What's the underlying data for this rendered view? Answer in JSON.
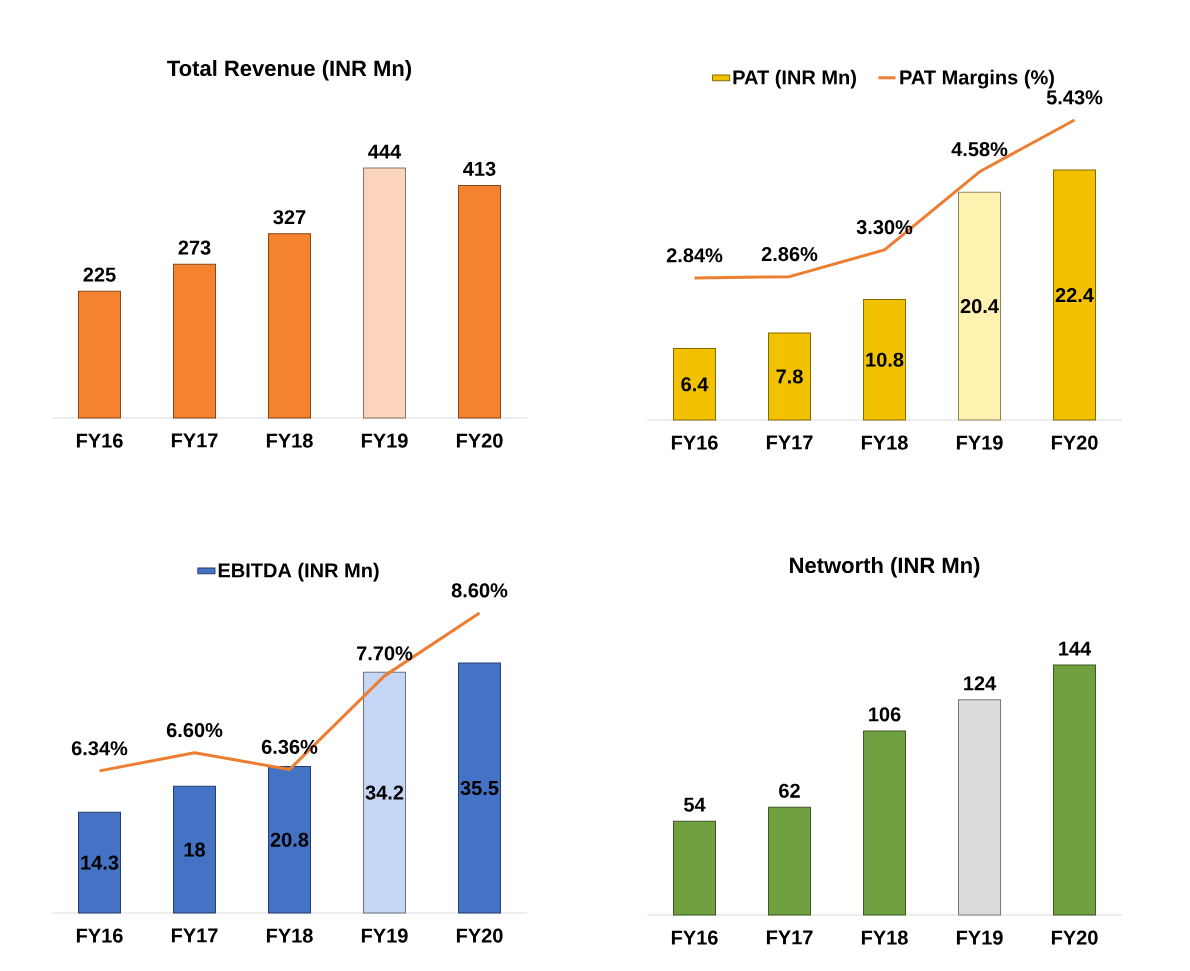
{
  "chart_data": [
    {
      "type": "bar",
      "title": "Total Revenue (INR Mn)",
      "categories": [
        "FY16",
        "FY17",
        "FY18",
        "FY19",
        "FY20"
      ],
      "values": [
        225,
        273,
        327,
        444,
        413
      ],
      "colors": [
        "#f5822f",
        "#f5822f",
        "#f5822f",
        "#fcd3bd",
        "#f5822f"
      ],
      "data_labels": true,
      "tick_labels": "x"
    },
    {
      "type": "bar",
      "categories": [
        "FY16",
        "FY17",
        "FY18",
        "FY19",
        "FY20"
      ],
      "legend": "top",
      "tick_labels": "x",
      "series": [
        {
          "name": "PAT (INR Mn)",
          "colors": [
            "#f2c200",
            "#f2c200",
            "#f2c200",
            "#fff1b0",
            "#f2c200"
          ],
          "values": [
            6.4,
            7.8,
            10.8,
            20.4,
            22.4
          ],
          "value_labels": [
            "6.4",
            "7.8",
            "10.8",
            "20.4",
            "22.4"
          ]
        },
        {
          "name": "PAT Margins (%)",
          "type": "line",
          "axis": "y2",
          "color": "#ed7d31",
          "values": [
            2.84,
            2.86,
            3.3,
            4.58,
            5.43
          ],
          "value_labels": [
            "2.84%",
            "2.86%",
            "3.30%",
            "4.58%",
            "5.43%"
          ]
        }
      ]
    },
    {
      "type": "bar",
      "categories": [
        "FY16",
        "FY17",
        "FY18",
        "FY19",
        "FY20"
      ],
      "legend": "top",
      "tick_labels": "x",
      "series": [
        {
          "name": "EBITDA (INR Mn)",
          "colors": [
            "#4472c4",
            "#4472c4",
            "#4472c4",
            "#c6d6f6",
            "#4472c4"
          ],
          "values": [
            14.3,
            18,
            20.8,
            34.2,
            35.5
          ],
          "value_labels": [
            "14.3",
            "18",
            "20.8",
            "34.2",
            "35.5"
          ]
        },
        {
          "type": "line",
          "axis": "y2",
          "color": "#ed7d31",
          "values": [
            6.34,
            6.6,
            6.36,
            7.7,
            8.6
          ],
          "value_labels": [
            "6.34%",
            "6.60%",
            "6.36%",
            "7.70%",
            "8.60%"
          ]
        }
      ]
    },
    {
      "type": "bar",
      "title": "Networth (INR Mn)",
      "categories": [
        "FY16",
        "FY17",
        "FY18",
        "FY19",
        "FY20"
      ],
      "values": [
        54,
        62,
        106,
        124,
        144
      ],
      "colors": [
        "#70a040",
        "#70a040",
        "#70a040",
        "#dcdcdc",
        "#70a040"
      ],
      "data_labels": true,
      "tick_labels": "x"
    }
  ]
}
